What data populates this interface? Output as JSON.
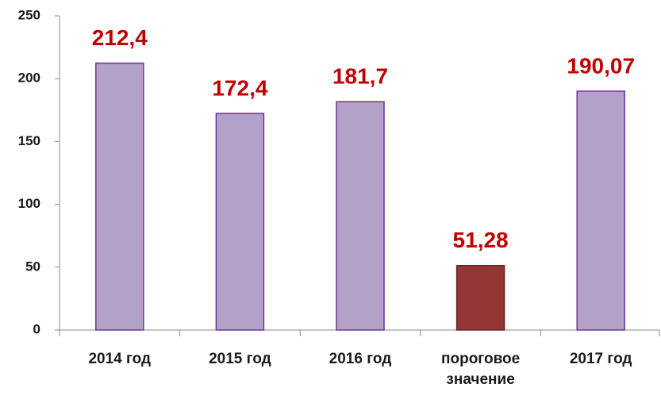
{
  "chart_data": {
    "type": "bar",
    "categories": [
      "2014 год",
      "2015 год",
      "2016 год",
      "пороговое значение",
      "2017 год"
    ],
    "values": [
      212.4,
      172.4,
      181.7,
      51.28,
      190.07
    ],
    "value_labels": [
      "212,4",
      "172,4",
      "181,7",
      "51,28",
      "190,07"
    ],
    "colors": [
      "#b3a2c7",
      "#b3a2c7",
      "#b3a2c7",
      "#943634",
      "#b3a2c7"
    ],
    "border_colors": [
      "#7030a0",
      "#7030a0",
      "#7030a0",
      "#632523",
      "#7030a0"
    ],
    "label_color": "#c00000",
    "ylim": [
      0,
      250
    ],
    "yticks": [
      0,
      50,
      100,
      150,
      200,
      250
    ],
    "grid": false
  }
}
